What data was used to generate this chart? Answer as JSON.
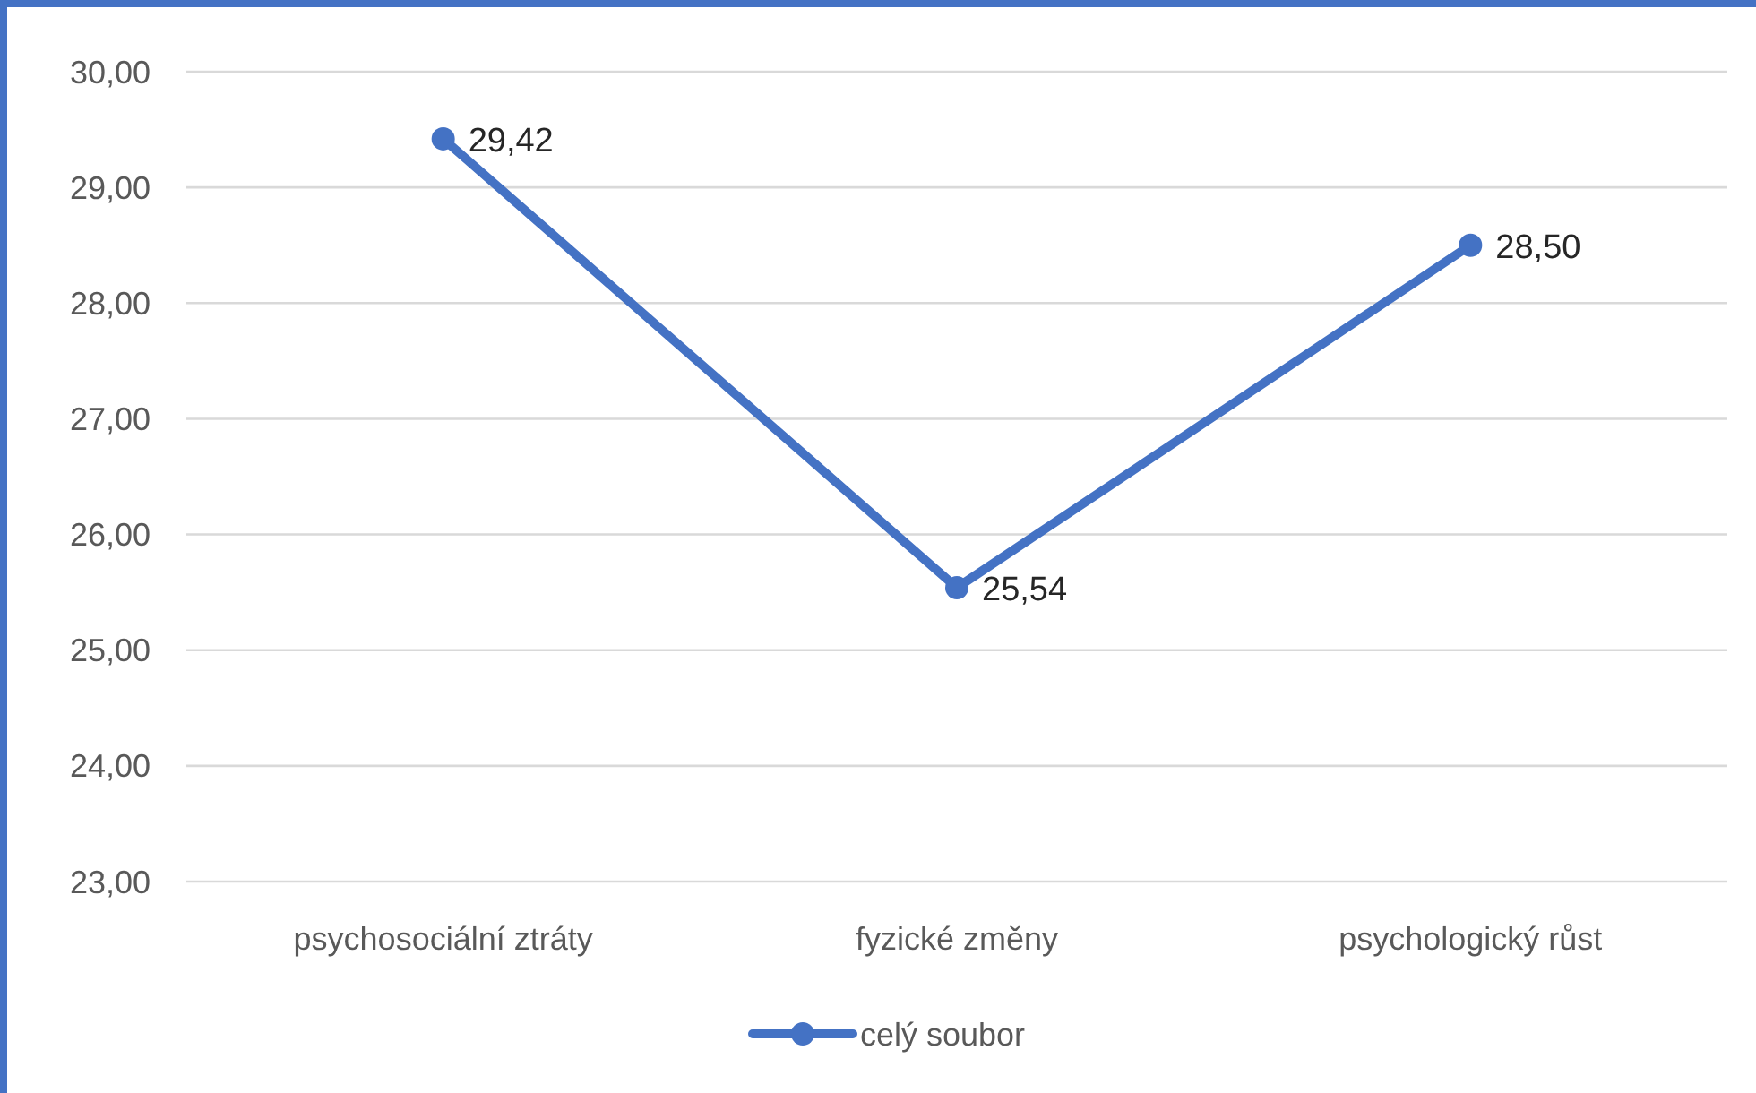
{
  "chart_data": {
    "type": "line",
    "categories": [
      "psychosociální ztráty",
      "fyzické změny",
      "psychologický růst"
    ],
    "series": [
      {
        "name": "celý soubor",
        "color": "#4472c4",
        "values": [
          29.42,
          25.54,
          28.5
        ],
        "value_labels": [
          "29,42",
          "25,54",
          "28,50"
        ]
      }
    ],
    "ylim": [
      23,
      30
    ],
    "yticks": [
      {
        "value": 23,
        "label": "23,00"
      },
      {
        "value": 24,
        "label": "24,00"
      },
      {
        "value": 25,
        "label": "25,00"
      },
      {
        "value": 26,
        "label": "26,00"
      },
      {
        "value": 27,
        "label": "27,00"
      },
      {
        "value": 28,
        "label": "28,00"
      },
      {
        "value": 29,
        "label": "29,00"
      },
      {
        "value": 30,
        "label": "30,00"
      }
    ],
    "grid": "y",
    "legend": "bottom",
    "marker": "circle",
    "line_style": "solid"
  }
}
